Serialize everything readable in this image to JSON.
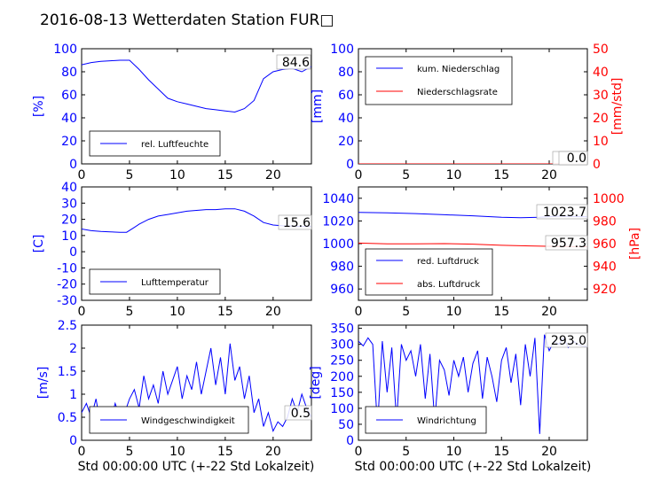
{
  "title": "2016-08-13 Wetterdaten Station FUR□",
  "xlabel": "Std 00:00:00 UTC (+-22 Std Lokalzeit)",
  "colors": {
    "axis_left": "#0000ff",
    "axis_right": "#ff0000",
    "series_blue": "#0000ff",
    "series_red": "#ff0000",
    "frame": "#000000"
  },
  "chart_data": [
    {
      "id": "humidity",
      "type": "line",
      "xlim": [
        0,
        24
      ],
      "ylim": [
        0,
        100
      ],
      "xticks": [
        0,
        5,
        10,
        15,
        20
      ],
      "yticks": [
        0,
        20,
        40,
        60,
        80,
        100
      ],
      "ylabel": "[%]",
      "legend": [
        "rel. Luftfeuchte"
      ],
      "legend_position": "lower-left",
      "last_value_label": "84.6",
      "series": [
        {
          "name": "rel. Luftfeuchte",
          "color": "#0000ff",
          "x": [
            0,
            1,
            2,
            3,
            4,
            5,
            6,
            7,
            8,
            9,
            10,
            11,
            12,
            13,
            14,
            15,
            16,
            17,
            18,
            19,
            20,
            21,
            22,
            23,
            24
          ],
          "y": [
            86,
            88,
            89,
            89.5,
            90,
            90,
            82,
            73,
            65,
            57,
            54,
            52,
            50,
            48,
            47,
            46,
            45,
            48,
            55,
            74,
            80,
            82,
            83,
            80,
            84.6
          ]
        }
      ]
    },
    {
      "id": "precipitation",
      "type": "line",
      "xlim": [
        0,
        24
      ],
      "ylim": [
        0,
        100
      ],
      "y2lim": [
        0,
        50
      ],
      "xticks": [
        0,
        5,
        10,
        15,
        20
      ],
      "yticks": [
        0,
        20,
        40,
        60,
        80,
        100
      ],
      "y2ticks": [
        0,
        10,
        20,
        30,
        40,
        50
      ],
      "ylabel": "[mm]",
      "y2label": "[mm/std]",
      "legend": [
        "kum. Niederschlag",
        "Niederschlagsrate"
      ],
      "legend_position": "upper-left",
      "last_value_label": "0.0",
      "last_value_label_2": "0.0",
      "series": [
        {
          "name": "kum. Niederschlag",
          "color": "#0000ff",
          "axis": "left",
          "x": [
            0,
            24
          ],
          "y": [
            0,
            0
          ]
        },
        {
          "name": "Niederschlagsrate",
          "color": "#ff0000",
          "axis": "right",
          "x": [
            0,
            24
          ],
          "y": [
            0,
            0
          ]
        }
      ]
    },
    {
      "id": "temperature",
      "type": "line",
      "xlim": [
        0,
        24
      ],
      "ylim": [
        -30,
        40
      ],
      "xticks": [
        0,
        5,
        10,
        15,
        20
      ],
      "yticks": [
        -30,
        -20,
        -10,
        0,
        10,
        20,
        30,
        40
      ],
      "ylabel": "[C]",
      "legend": [
        "Lufttemperatur"
      ],
      "legend_position": "lower-left",
      "last_value_label": "15.6",
      "series": [
        {
          "name": "Lufttemperatur",
          "color": "#0000ff",
          "x": [
            0,
            1,
            2,
            3,
            4,
            4.7,
            5.5,
            6,
            7,
            8,
            9,
            10,
            11,
            12,
            13,
            14,
            15,
            16,
            17,
            18,
            19,
            20,
            21,
            22,
            23,
            24
          ],
          "y": [
            14,
            13,
            12.5,
            12.2,
            12,
            12,
            15,
            17,
            20,
            22,
            23,
            24,
            25,
            25.5,
            26,
            26,
            26.5,
            26.5,
            25,
            22,
            18,
            16.5,
            16,
            15.8,
            15.6,
            15.6
          ]
        }
      ]
    },
    {
      "id": "pressure",
      "type": "line",
      "xlim": [
        0,
        24
      ],
      "ylim": [
        950,
        1050
      ],
      "y2lim": [
        910,
        1010
      ],
      "xticks": [
        0,
        5,
        10,
        15,
        20
      ],
      "yticks": [
        960,
        980,
        1000,
        1020,
        1040
      ],
      "y2ticks": [
        920,
        940,
        960,
        980,
        1000
      ],
      "y2label": "[hPa]",
      "legend": [
        "red. Luftdruck",
        "abs. Luftdruck"
      ],
      "legend_position": "lower-left",
      "last_value_label": "1023.7",
      "last_value_label_2": "957.3",
      "series": [
        {
          "name": "red. Luftdruck",
          "color": "#0000ff",
          "axis": "left",
          "x": [
            0,
            3,
            6,
            9,
            12,
            15,
            17,
            19,
            21,
            24
          ],
          "y": [
            1027.5,
            1027.2,
            1026.5,
            1025.5,
            1024.5,
            1023.2,
            1022.8,
            1023.3,
            1024.2,
            1023.7
          ]
        },
        {
          "name": "abs. Luftdruck",
          "color": "#ff0000",
          "axis": "right",
          "x": [
            0,
            3,
            6,
            9,
            12,
            15,
            18,
            21,
            24
          ],
          "y": [
            960.5,
            959.8,
            959.8,
            960,
            959.5,
            958.5,
            958,
            957.5,
            957.3
          ]
        }
      ]
    },
    {
      "id": "windspeed",
      "type": "line",
      "xlim": [
        0,
        24
      ],
      "ylim": [
        0,
        2.5
      ],
      "xticks": [
        0,
        5,
        10,
        15,
        20
      ],
      "yticks": [
        0,
        0.5,
        1.0,
        1.5,
        2.0,
        2.5
      ],
      "ylabel": "[m/s]",
      "legend": [
        "Windgeschwindigkeit"
      ],
      "legend_position": "lower-left",
      "last_value_label": "0.5",
      "series": [
        {
          "name": "Windgeschwindigkeit",
          "color": "#0000ff",
          "x": [
            0,
            0.5,
            1,
            1.5,
            2,
            2.5,
            3,
            3.5,
            4,
            4.5,
            5,
            5.5,
            6,
            6.5,
            7,
            7.5,
            8,
            8.5,
            9,
            9.5,
            10,
            10.5,
            11,
            11.5,
            12,
            12.5,
            13,
            13.5,
            14,
            14.5,
            15,
            15.5,
            16,
            16.5,
            17,
            17.5,
            18,
            18.5,
            19,
            19.5,
            20,
            20.5,
            21,
            21.5,
            22,
            22.5,
            23,
            23.5,
            24
          ],
          "y": [
            0.6,
            0.8,
            0.5,
            0.9,
            0.3,
            0.7,
            0.4,
            0.8,
            0.5,
            0.6,
            0.9,
            1.1,
            0.7,
            1.4,
            0.9,
            1.2,
            0.8,
            1.5,
            1.0,
            1.3,
            1.6,
            0.9,
            1.4,
            1.1,
            1.7,
            1.0,
            1.5,
            2.0,
            1.2,
            1.8,
            1.0,
            2.1,
            1.3,
            1.6,
            0.9,
            1.4,
            0.6,
            0.9,
            0.3,
            0.6,
            0.2,
            0.4,
            0.3,
            0.5,
            0.9,
            0.6,
            1.0,
            0.7,
            0.5
          ]
        }
      ]
    },
    {
      "id": "winddirection",
      "type": "line",
      "xlim": [
        0,
        24
      ],
      "ylim": [
        0,
        360
      ],
      "xticks": [
        0,
        5,
        10,
        15,
        20
      ],
      "yticks": [
        0,
        50,
        100,
        150,
        200,
        250,
        300,
        350
      ],
      "ylabel": "[deg]",
      "legend": [
        "Windrichtung"
      ],
      "legend_position": "lower-left",
      "last_value_label": "293.0",
      "series": [
        {
          "name": "Windrichtung",
          "color": "#0000ff",
          "x": [
            0,
            0.5,
            1,
            1.5,
            2,
            2.5,
            3,
            3.5,
            4,
            4.5,
            5,
            5.5,
            6,
            6.5,
            7,
            7.5,
            8,
            8.5,
            9,
            9.5,
            10,
            10.5,
            11,
            11.5,
            12,
            12.5,
            13,
            13.5,
            14,
            14.5,
            15,
            15.5,
            16,
            16.5,
            17,
            17.5,
            18,
            18.5,
            19,
            19.5,
            20,
            20.5,
            21,
            21.5,
            22,
            22.5,
            23,
            23.5,
            24
          ],
          "y": [
            310,
            295,
            320,
            300,
            40,
            310,
            150,
            290,
            60,
            300,
            250,
            280,
            200,
            300,
            130,
            270,
            60,
            250,
            220,
            140,
            250,
            200,
            260,
            150,
            240,
            280,
            130,
            260,
            200,
            120,
            250,
            290,
            180,
            270,
            110,
            300,
            200,
            320,
            20,
            330,
            280,
            310,
            300,
            320,
            290,
            310,
            300,
            295,
            293
          ]
        }
      ]
    }
  ]
}
